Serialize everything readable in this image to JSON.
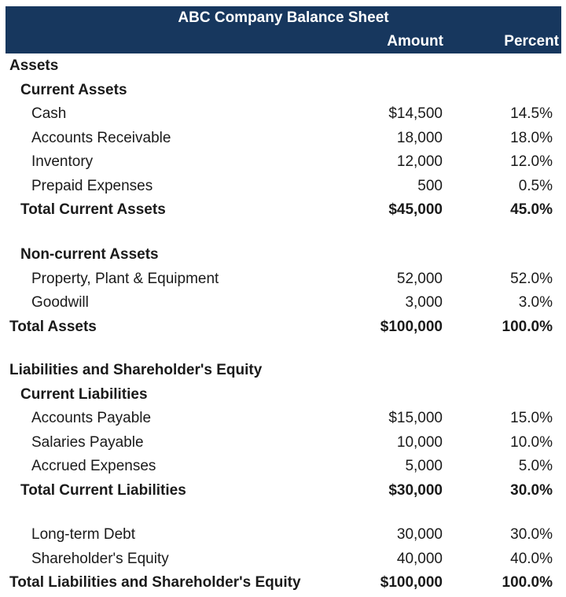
{
  "title": "ABC Company Balance Sheet",
  "header": [
    "Amount",
    "Percent"
  ],
  "rows": [
    [
      "Assets"
    ],
    [
      "Current Assets"
    ],
    [
      "Cash",
      "$14,500",
      "14.5%"
    ],
    [
      "Accounts Receivable",
      "18,000",
      "18.0%"
    ],
    [
      "Inventory",
      "12,000",
      "12.0%"
    ],
    [
      "Prepaid Expenses",
      "500",
      "0.5%"
    ],
    [
      "Total Current Assets",
      "$45,000",
      "45.0%"
    ],
    [
      "Non-current Assets"
    ],
    [
      "Property, Plant & Equipment",
      "52,000",
      "52.0%"
    ],
    [
      "Goodwill",
      "3,000",
      "3.0%"
    ],
    [
      "Total Assets",
      "$100,000",
      "100.0%"
    ],
    [
      "Liabilities and Shareholder's Equity"
    ],
    [
      "Current Liabilities"
    ],
    [
      "Accounts Payable",
      "$15,000",
      "15.0%"
    ],
    [
      "Salaries Payable",
      "10,000",
      "10.0%"
    ],
    [
      "Accrued Expenses",
      "5,000",
      "5.0%"
    ],
    [
      "Total Current Liabilities",
      "$30,000",
      "30.0%"
    ],
    [
      "Long-term Debt",
      "30,000",
      "30.0%"
    ],
    [
      "Shareholder's Equity",
      "40,000",
      "40.0%"
    ],
    [
      "Total Liabilities and Shareholder's Equity",
      "$100,000",
      "100.0%"
    ]
  ]
}
